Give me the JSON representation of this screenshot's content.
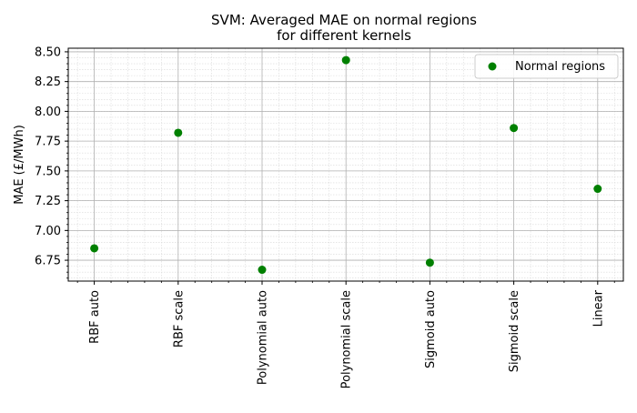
{
  "chart_data": {
    "type": "scatter",
    "title_lines": [
      "SVM: Averaged MAE on normal regions",
      "for different kernels"
    ],
    "xlabel": "",
    "ylabel": "MAE (£/MWh)",
    "categories": [
      "RBF auto",
      "RBF scale",
      "Polynomial auto",
      "Polynomial scale",
      "Sigmoid auto",
      "Sigmoid scale",
      "Linear"
    ],
    "series": [
      {
        "name": "Normal regions",
        "color": "#008000",
        "values": [
          6.85,
          7.82,
          6.67,
          8.43,
          6.73,
          7.86,
          7.35
        ]
      }
    ],
    "ylim": [
      6.575,
      8.53
    ],
    "yticks": [
      6.75,
      7.0,
      7.25,
      7.5,
      7.75,
      8.0,
      8.25,
      8.5
    ],
    "ytick_labels": [
      "6.75",
      "7.00",
      "7.25",
      "7.50",
      "7.75",
      "8.00",
      "8.25",
      "8.50"
    ],
    "grid": true,
    "legend_position": "top-right"
  }
}
